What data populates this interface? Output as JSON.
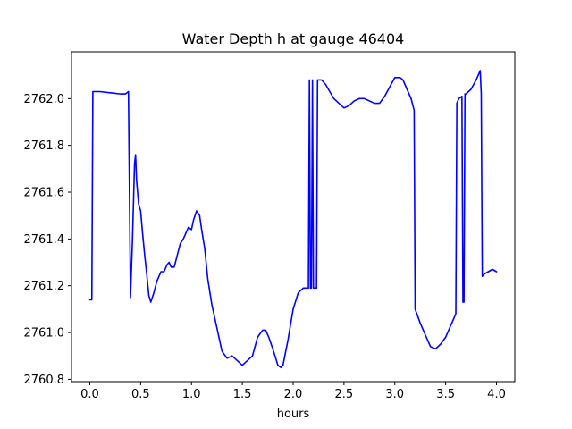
{
  "chart_data": {
    "type": "line",
    "title": "Water Depth h at gauge 46404",
    "xlabel": "hours",
    "ylabel": "",
    "xlim": [
      -0.18,
      4.18
    ],
    "ylim": [
      2760.79,
      2762.2
    ],
    "xticks": [
      0.0,
      0.5,
      1.0,
      1.5,
      2.0,
      2.5,
      3.0,
      3.5,
      4.0
    ],
    "xtick_labels": [
      "0.0",
      "0.5",
      "1.0",
      "1.5",
      "2.0",
      "2.5",
      "3.0",
      "3.5",
      "4.0"
    ],
    "yticks": [
      2760.8,
      2761.0,
      2761.2,
      2761.4,
      2761.6,
      2761.8,
      2762.0
    ],
    "ytick_labels": [
      "2760.8",
      "2761.0",
      "2761.2",
      "2761.4",
      "2761.6",
      "2761.8",
      "2762.0"
    ],
    "grid": false,
    "line_color": "#0000ff",
    "series": [
      {
        "x": [
          0.0,
          0.02,
          0.03,
          0.1,
          0.2,
          0.3,
          0.35,
          0.38,
          0.39,
          0.4,
          0.42,
          0.44,
          0.45,
          0.46,
          0.48,
          0.5,
          0.52,
          0.54,
          0.56,
          0.58,
          0.6,
          0.63,
          0.66,
          0.7,
          0.73,
          0.76,
          0.78,
          0.8,
          0.83,
          0.86,
          0.89,
          0.92,
          0.95,
          0.97,
          1.0,
          1.02,
          1.05,
          1.08,
          1.1,
          1.13,
          1.16,
          1.2,
          1.25,
          1.3,
          1.35,
          1.4,
          1.45,
          1.5,
          1.55,
          1.6,
          1.65,
          1.7,
          1.73,
          1.76,
          1.8,
          1.85,
          1.88,
          1.9,
          1.95,
          2.0,
          2.05,
          2.1,
          2.15,
          2.16,
          2.17,
          2.18,
          2.19,
          2.2,
          2.22,
          2.23,
          2.24,
          2.28,
          2.32,
          2.36,
          2.4,
          2.45,
          2.5,
          2.55,
          2.6,
          2.65,
          2.7,
          2.75,
          2.8,
          2.85,
          2.9,
          2.95,
          3.0,
          3.05,
          3.08,
          3.12,
          3.16,
          3.19,
          3.2,
          3.25,
          3.3,
          3.35,
          3.4,
          3.45,
          3.5,
          3.55,
          3.6,
          3.61,
          3.63,
          3.66,
          3.67,
          3.68,
          3.69,
          3.7,
          3.75,
          3.8,
          3.84,
          3.85,
          3.86,
          3.88,
          3.92,
          3.96,
          4.0
        ],
        "y": [
          2761.14,
          2761.14,
          2762.03,
          2762.03,
          2762.025,
          2762.02,
          2762.02,
          2762.03,
          2761.6,
          2761.15,
          2761.4,
          2761.72,
          2761.76,
          2761.65,
          2761.55,
          2761.52,
          2761.42,
          2761.33,
          2761.25,
          2761.16,
          2761.13,
          2761.17,
          2761.22,
          2761.26,
          2761.26,
          2761.29,
          2761.3,
          2761.28,
          2761.28,
          2761.33,
          2761.38,
          2761.4,
          2761.43,
          2761.45,
          2761.44,
          2761.48,
          2761.52,
          2761.5,
          2761.44,
          2761.36,
          2761.23,
          2761.12,
          2761.02,
          2760.92,
          2760.89,
          2760.9,
          2760.88,
          2760.86,
          2760.88,
          2760.9,
          2760.98,
          2761.01,
          2761.01,
          2760.98,
          2760.93,
          2760.86,
          2760.85,
          2760.86,
          2760.97,
          2761.1,
          2761.17,
          2761.19,
          2761.19,
          2762.08,
          2761.19,
          2761.19,
          2762.08,
          2761.19,
          2761.19,
          2761.19,
          2762.08,
          2762.08,
          2762.06,
          2762.03,
          2762.0,
          2761.98,
          2761.96,
          2761.97,
          2761.99,
          2762.0,
          2762.0,
          2761.99,
          2761.98,
          2761.98,
          2762.01,
          2762.05,
          2762.09,
          2762.09,
          2762.08,
          2762.04,
          2762.0,
          2761.95,
          2761.1,
          2761.04,
          2760.99,
          2760.94,
          2760.93,
          2760.95,
          2760.98,
          2761.03,
          2761.08,
          2761.98,
          2762.0,
          2762.01,
          2761.13,
          2761.13,
          2762.02,
          2762.02,
          2762.04,
          2762.08,
          2762.12,
          2762.02,
          2761.24,
          2761.25,
          2761.26,
          2761.27,
          2761.26
        ]
      }
    ]
  }
}
